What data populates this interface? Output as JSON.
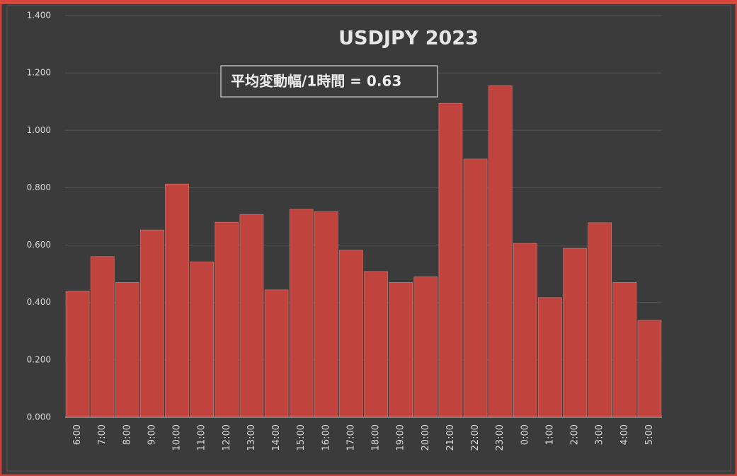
{
  "chart_data": {
    "type": "bar",
    "title": "USDJPY 2023",
    "annotation": "平均変動幅/1時間 = 0.63",
    "categories": [
      "6:00",
      "7:00",
      "8:00",
      "9:00",
      "10:00",
      "11:00",
      "12:00",
      "13:00",
      "14:00",
      "15:00",
      "16:00",
      "17:00",
      "18:00",
      "19:00",
      "20:00",
      "21:00",
      "22:00",
      "23:00",
      "0:00",
      "1:00",
      "2:00",
      "3:00",
      "4:00",
      "5:00"
    ],
    "values": [
      0.44,
      0.56,
      0.47,
      0.653,
      0.813,
      0.542,
      0.68,
      0.707,
      0.444,
      0.725,
      0.717,
      0.582,
      0.508,
      0.47,
      0.49,
      1.094,
      0.9,
      1.156,
      0.606,
      0.417,
      0.589,
      0.678,
      0.47,
      0.338
    ],
    "color": "#c0433e",
    "ylim": [
      0,
      1.4
    ],
    "yticks": [
      {
        "value": 0,
        "label": "0.000"
      },
      {
        "value": 0.2,
        "label": "0.200"
      },
      {
        "value": 0.4,
        "label": "0.400"
      },
      {
        "value": 0.6,
        "label": "0.600"
      },
      {
        "value": 0.8,
        "label": "0.800"
      },
      {
        "value": 1,
        "label": "1.000"
      },
      {
        "value": 1.2,
        "label": "1.200"
      },
      {
        "value": 1.4,
        "label": "1.400"
      }
    ],
    "grid": true
  }
}
